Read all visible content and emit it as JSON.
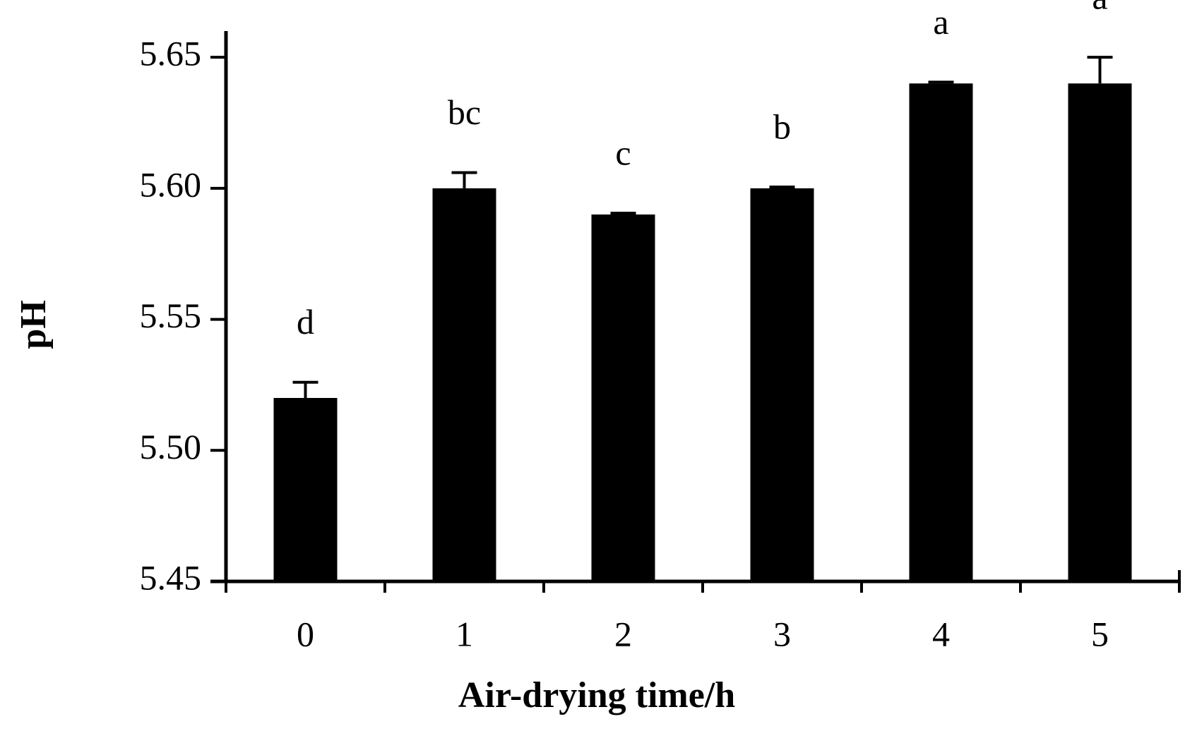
{
  "chart_data": {
    "type": "bar",
    "x_label": "Air-drying time/h",
    "y_label": "pH",
    "categories": [
      "0",
      "1",
      "2",
      "3",
      "4",
      "5"
    ],
    "values": [
      5.52,
      5.6,
      5.59,
      5.6,
      5.64,
      5.64
    ],
    "errors": [
      0.006,
      0.006,
      0.0005,
      0.0005,
      0.0005,
      0.01
    ],
    "annotations": [
      "d",
      "bc",
      "c",
      "b",
      "a",
      "a"
    ],
    "color": "#000000",
    "ylim": [
      5.45,
      5.66
    ],
    "yticks": [
      5.45,
      {
        "value": 5.5,
        "label": "5.50"
      },
      5.55,
      {
        "value": 5.6,
        "label": "5.60"
      },
      5.65
    ]
  }
}
